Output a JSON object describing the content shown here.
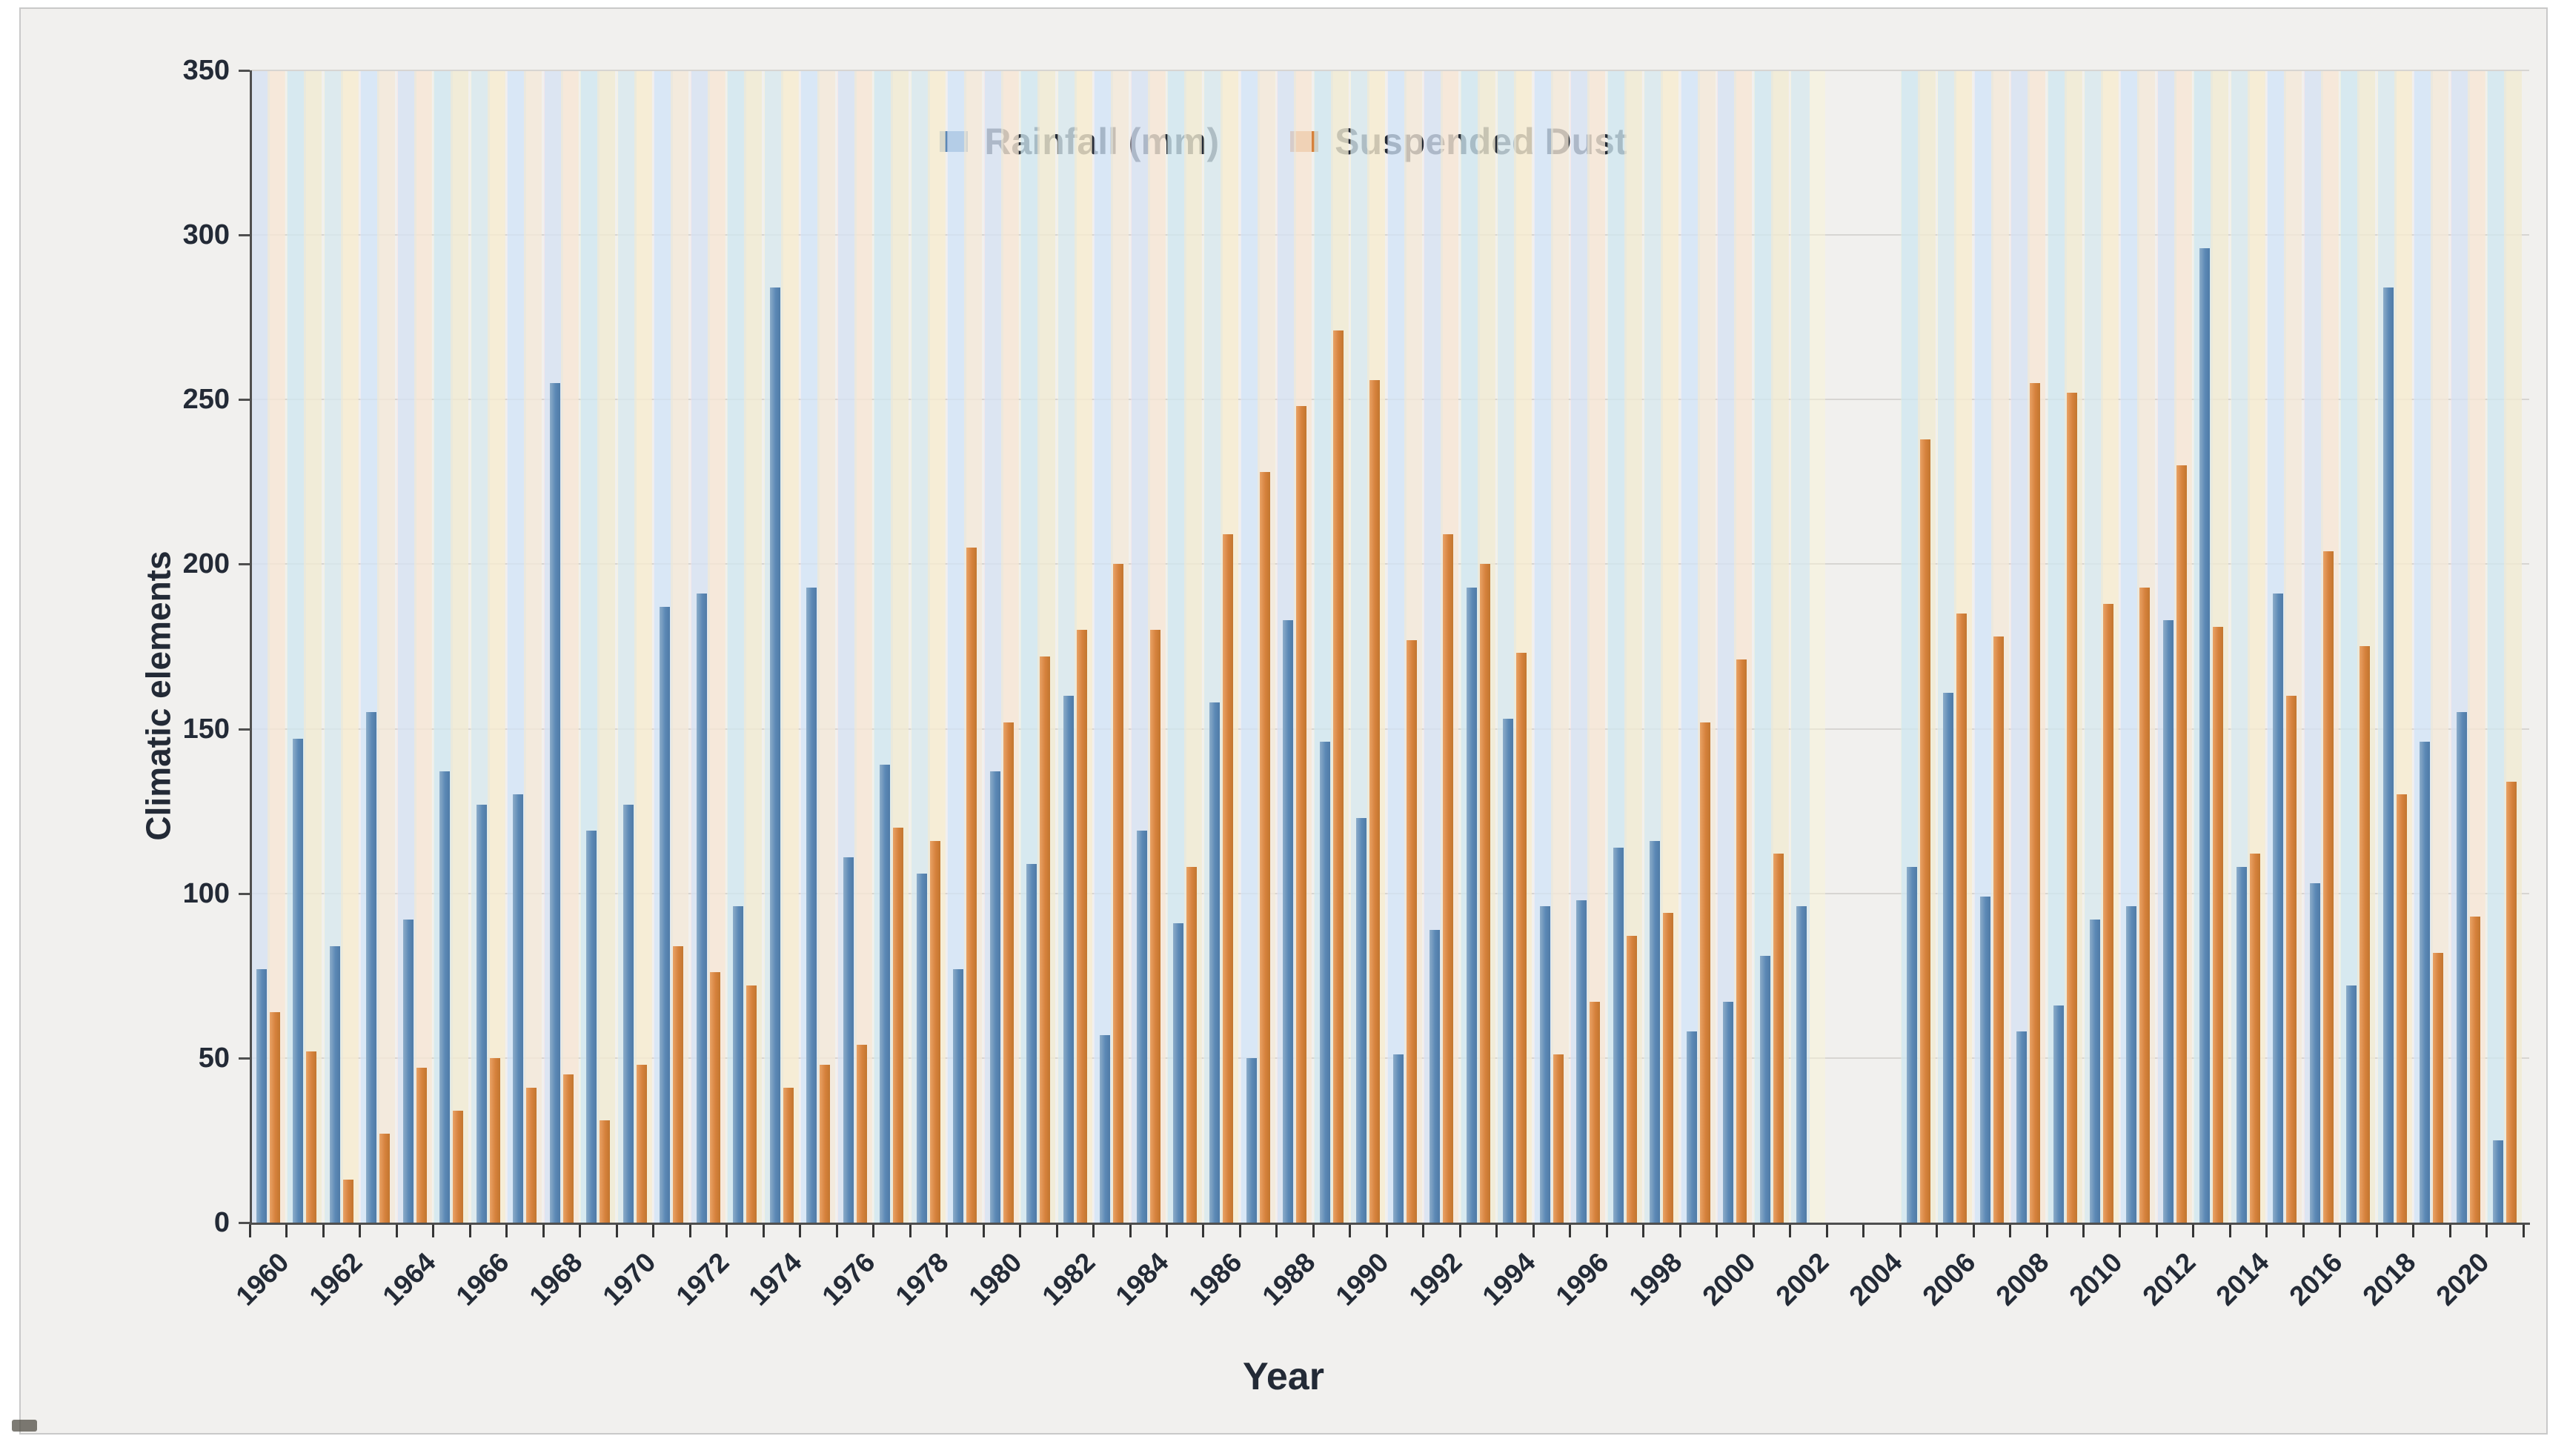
{
  "chart_data": {
    "type": "bar",
    "title": "",
    "xlabel": "Year",
    "ylabel": "Climatic elements",
    "ylim": [
      0,
      350
    ],
    "yticks": [
      0,
      50,
      100,
      150,
      200,
      250,
      300,
      350
    ],
    "grid": "horizontal",
    "legend_position": "top-center",
    "categories": [
      1960,
      1961,
      1962,
      1963,
      1964,
      1965,
      1966,
      1967,
      1968,
      1969,
      1970,
      1971,
      1972,
      1973,
      1974,
      1975,
      1976,
      1977,
      1978,
      1979,
      1980,
      1981,
      1982,
      1983,
      1984,
      1985,
      1986,
      1987,
      1988,
      1989,
      1990,
      1991,
      1992,
      1993,
      1994,
      1995,
      1996,
      1997,
      1998,
      1999,
      2000,
      2001,
      2002,
      2003,
      2004,
      2005,
      2006,
      2007,
      2008,
      2009,
      2010,
      2011,
      2012,
      2013,
      2014,
      2015,
      2016,
      2017,
      2018,
      2019,
      2020,
      2021
    ],
    "xtick_labels": [
      "1960",
      "1962",
      "1964",
      "1966",
      "1968",
      "1970",
      "1972",
      "1974",
      "1976",
      "1978",
      "1980",
      "1982",
      "1984",
      "1986",
      "1988",
      "1990",
      "1992",
      "1994",
      "1996",
      "1998",
      "2000",
      "2002",
      "2004",
      "2006",
      "2008",
      "2010",
      "2012",
      "2014",
      "2016",
      "2018",
      "2020"
    ],
    "series": [
      {
        "name": "Rainfall (mm)",
        "color": "#5b88b5",
        "values": [
          77,
          147,
          84,
          155,
          92,
          137,
          127,
          130,
          255,
          119,
          127,
          187,
          191,
          96,
          284,
          193,
          111,
          139,
          106,
          77,
          137,
          109,
          160,
          57,
          119,
          91,
          158,
          50,
          183,
          146,
          123,
          51,
          89,
          193,
          153,
          96,
          98,
          114,
          116,
          58,
          67,
          81,
          96,
          null,
          null,
          108,
          161,
          99,
          58,
          66,
          92,
          96,
          183,
          296,
          108,
          191,
          103,
          72,
          284,
          146,
          155,
          25
        ]
      },
      {
        "name": "Suspended Dust",
        "color": "#d5813c",
        "values": [
          64,
          52,
          13,
          27,
          47,
          34,
          50,
          41,
          45,
          31,
          48,
          84,
          76,
          72,
          41,
          48,
          54,
          120,
          116,
          205,
          152,
          172,
          180,
          200,
          180,
          108,
          209,
          228,
          248,
          271,
          256,
          177,
          209,
          200,
          173,
          51,
          67,
          87,
          94,
          152,
          171,
          112,
          null,
          null,
          null,
          238,
          185,
          178,
          255,
          252,
          188,
          193,
          230,
          181,
          112,
          160,
          204,
          175,
          130,
          82,
          93,
          134
        ]
      }
    ]
  }
}
